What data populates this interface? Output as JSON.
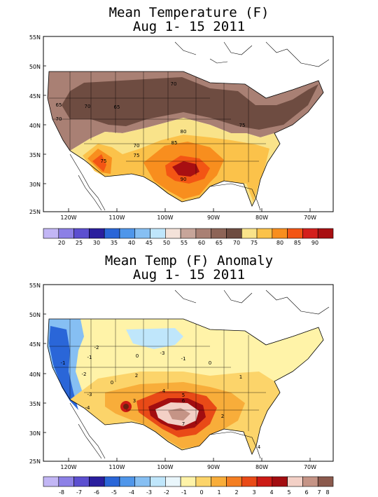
{
  "panels": [
    {
      "title1": "Mean Temperature (F)",
      "title2": "Aug 1- 15 2011",
      "lat_labels": [
        "55N",
        "50N",
        "45N",
        "40N",
        "35N",
        "30N",
        "25N"
      ],
      "lon_labels": [
        "120W",
        "110W",
        "100W",
        "90W",
        "80W",
        "70W"
      ],
      "contour_labels": [
        "70",
        "65",
        "70",
        "65",
        "70",
        "75",
        "70",
        "75",
        "80",
        "85",
        "90",
        "75"
      ],
      "colorbar": {
        "colors": [
          "#c2b6f5",
          "#8c80e6",
          "#5c4fd0",
          "#2a1e9e",
          "#2a66d8",
          "#4f96ea",
          "#86bff3",
          "#bfe6fb",
          "#f3e2d9",
          "#c7a59a",
          "#a98074",
          "#8d6457",
          "#6e4c41",
          "#f9e38a",
          "#fbc24a",
          "#f88e1e",
          "#f35514",
          "#d41f1c",
          "#a80f12"
        ],
        "labels": [
          "20",
          "25",
          "30",
          "35",
          "40",
          "45",
          "50",
          "55",
          "60",
          "65",
          "70",
          "75",
          "80",
          "85",
          "90"
        ]
      }
    },
    {
      "title1": "Mean Temp (F) Anomaly",
      "title2": "Aug 1- 15 2011",
      "lat_labels": [
        "55N",
        "50N",
        "45N",
        "40N",
        "35N",
        "30N",
        "25N"
      ],
      "lon_labels": [
        "120W",
        "110W",
        "100W",
        "90W",
        "80W",
        "70W"
      ],
      "contour_labels": [
        "-3",
        "-1",
        "0",
        "-4",
        "-3",
        "-2",
        "-1",
        "-2",
        "0",
        "2",
        "3",
        "4",
        "5",
        "6",
        "7",
        "2",
        "1",
        "0",
        "-1",
        "4"
      ],
      "colorbar": {
        "colors": [
          "#c2b6f5",
          "#8c80e6",
          "#5c4fd0",
          "#2a1e9e",
          "#2a66d8",
          "#4f96ea",
          "#86bff3",
          "#bfe6fb",
          "#e9f6fb",
          "#fff3a8",
          "#fcd46a",
          "#f8ad3a",
          "#f47e22",
          "#e94a17",
          "#cc1b15",
          "#a20d10",
          "#f3d0c6",
          "#c59486",
          "#8b5a4d"
        ],
        "labels": [
          "-8",
          "-7",
          "-6",
          "-5",
          "-4",
          "-3",
          "-2",
          "-1",
          "0",
          "1",
          "2",
          "3",
          "4",
          "5",
          "6",
          "7",
          "8"
        ]
      }
    }
  ]
}
